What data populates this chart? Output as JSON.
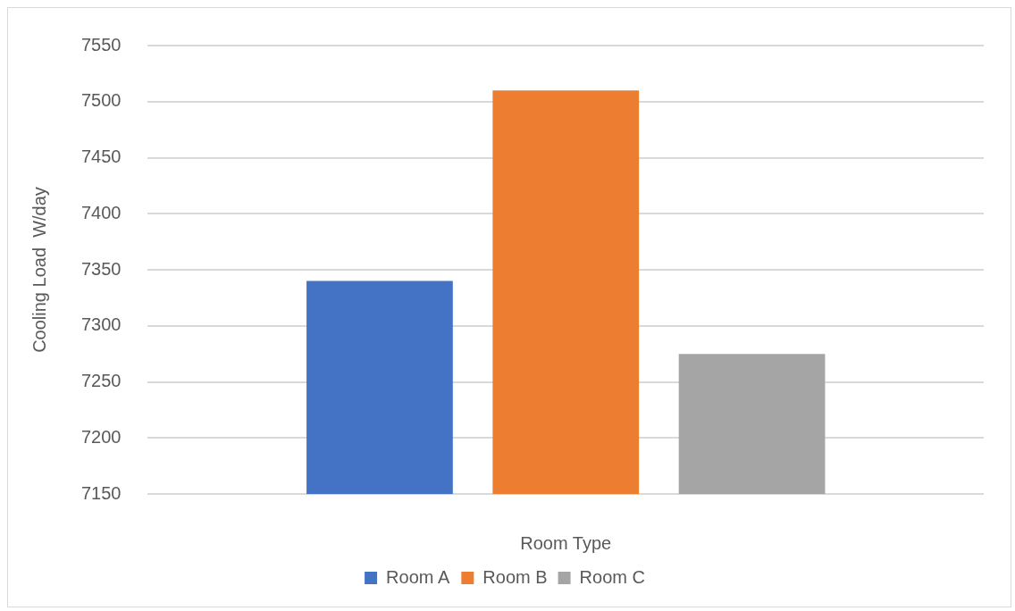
{
  "chart_data": {
    "type": "bar",
    "xlabel": "Room Type",
    "ylabel": "Cooling Load  W/day",
    "categories": [
      null
    ],
    "series": [
      {
        "name": "Room A",
        "color": "#4472c4",
        "values": [
          7340
        ]
      },
      {
        "name": "Room B",
        "color": "#ed7d31",
        "values": [
          7510
        ]
      },
      {
        "name": "Room C",
        "color": "#a5a5a5",
        "values": [
          7275
        ]
      }
    ],
    "ylim": [
      7150,
      7550
    ],
    "yticks": [
      7150,
      7200,
      7250,
      7300,
      7350,
      7400,
      7450,
      7500,
      7550
    ],
    "grid": "y",
    "legend": "bottom"
  }
}
